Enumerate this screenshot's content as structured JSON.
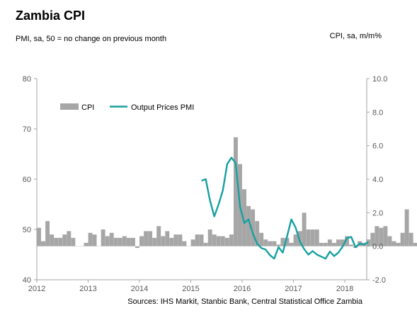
{
  "chart_data": {
    "type": "bar+line",
    "title": "Zambia CPI",
    "left_axis_label": "PMI, sa, 50 = no change on previous month",
    "right_axis_label": "CPI, sa, m/m%",
    "source": "Sources: IHS Markit, Stanbic Bank, Central Statistical Office Zambia",
    "left_ylim": [
      40,
      80
    ],
    "left_ticks": [
      "40",
      "50",
      "60",
      "70",
      "80"
    ],
    "right_ylim": [
      -2.0,
      10.0
    ],
    "right_ticks": [
      "-2.0",
      "0.0",
      "2.0",
      "4.0",
      "6.0",
      "8.0",
      "10.0"
    ],
    "x_ticks": [
      "2012",
      "2013",
      "2014",
      "2015",
      "2016",
      "2017",
      "2018"
    ],
    "grid": false,
    "legend_position": "top-left",
    "colors": {
      "cpi": "#a6a6a6",
      "pmi": "#17a0a0",
      "axis": "#a6a6a6"
    },
    "series": [
      {
        "name": "CPI",
        "kind": "bar",
        "axis": "right",
        "start": "2012-01",
        "values": [
          1.1,
          0.3,
          1.5,
          0.7,
          0.5,
          0.5,
          0.7,
          0.9,
          0.5,
          0.0,
          0.0,
          0.2,
          0.8,
          0.7,
          0.0,
          1.0,
          0.6,
          0.8,
          0.5,
          0.5,
          0.6,
          0.5,
          0.5,
          -0.1,
          0.6,
          0.9,
          0.9,
          0.5,
          1.2,
          0.6,
          0.9,
          0.5,
          0.7,
          0.7,
          0.3,
          0.0,
          0.4,
          0.7,
          0.7,
          0.2,
          1.0,
          0.7,
          0.6,
          0.6,
          0.5,
          0.7,
          6.5,
          4.9,
          3.4,
          2.4,
          2.2,
          1.5,
          0.8,
          0.4,
          0.3,
          0.3,
          0.1,
          0.5,
          0.5,
          0.2,
          0.7,
          0.9,
          2.0,
          1.0,
          1.0,
          1.0,
          0.2,
          0.2,
          0.4,
          0.2,
          0.4,
          0.4,
          0.6,
          0.1,
          -0.1,
          0.3,
          0.2,
          0.4,
          0.8,
          1.2,
          1.1,
          1.2,
          0.6,
          0.3,
          0.2,
          0.8,
          2.2,
          0.8,
          0.2,
          0.9,
          0.7,
          0.7,
          0.6
        ]
      },
      {
        "name": "Output Prices PMI",
        "kind": "line",
        "axis": "left",
        "x": [
          "2015-03",
          "2015-04",
          "2015-05",
          "2015-06",
          "2015-07",
          "2015-08",
          "2015-09",
          "2015-10",
          "2015-11",
          "2015-12",
          "2016-01",
          "2016-02",
          "2016-03",
          "2016-04",
          "2016-05",
          "2016-06",
          "2016-07",
          "2016-08",
          "2016-09",
          "2016-10",
          "2016-11",
          "2016-12",
          "2017-01",
          "2017-02",
          "2017-03",
          "2017-04",
          "2017-05",
          "2017-06",
          "2017-07",
          "2017-08",
          "2017-09",
          "2017-10",
          "2017-11",
          "2017-12",
          "2018-01",
          "2018-02",
          "2018-03",
          "2018-04",
          "2018-05",
          "2018-06"
        ],
        "values": [
          59.7,
          60.0,
          55.7,
          52.6,
          55.0,
          57.8,
          63.0,
          64.3,
          63.2,
          54.6,
          51.3,
          52.0,
          49.2,
          47.2,
          46.3,
          46.0,
          44.9,
          44.2,
          46.5,
          45.4,
          48.6,
          52.0,
          50.4,
          47.6,
          46.1,
          45.0,
          45.7,
          45.0,
          44.6,
          44.2,
          45.6,
          44.7,
          45.4,
          46.6,
          48.3,
          48.5,
          46.5,
          47.2,
          47.0,
          47.5
        ]
      }
    ]
  }
}
